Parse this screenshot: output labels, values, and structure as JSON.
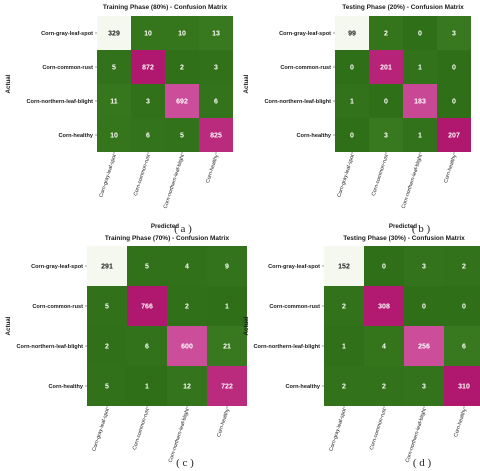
{
  "colors": {
    "dark_green": "#2e6f18",
    "mid_green": "#3a7a20",
    "light_green": "#d9efc6",
    "very_light": "#f4f8ee",
    "magenta": "#b0176e",
    "pink": "#cc4e9a",
    "dark_text": "#1a1a1a",
    "light_text": "#ffffff"
  },
  "chart_data": [
    {
      "type": "heatmap",
      "caption": "( a )",
      "title": "Training Phase (80%) - Confusion Matrix",
      "xlabel": "Predicted",
      "ylabel": "Actual",
      "rows": [
        "Corn-gray-leaf-spot",
        "Corn-common-rust",
        "Corn-northern-leaf-blight",
        "Corn-healthy"
      ],
      "cols": [
        "Corn-gray-leaf-spot",
        "Corn-common-rust",
        "Corn-northern-leaf-blight",
        "Corn-healthy"
      ],
      "values": [
        [
          329,
          10,
          10,
          13
        ],
        [
          5,
          872,
          2,
          3
        ],
        [
          11,
          3,
          692,
          6
        ],
        [
          10,
          6,
          5,
          825
        ]
      ]
    },
    {
      "type": "heatmap",
      "caption": "( b )",
      "title": "Testing Phase (20%) - Confusion Matrix",
      "xlabel": "Predicted",
      "ylabel": "Actual",
      "rows": [
        "Corn-gray-leaf-spot",
        "Corn-common-rust",
        "Corn-northern-leaf-blight",
        "Corn-healthy"
      ],
      "cols": [
        "Corn-gray-leaf-spot",
        "Corn-common-rust",
        "Corn-northern-leaf-blight",
        "Corn-healthy"
      ],
      "values": [
        [
          99,
          2,
          0,
          3
        ],
        [
          0,
          201,
          1,
          0
        ],
        [
          1,
          0,
          183,
          0
        ],
        [
          0,
          3,
          1,
          207
        ]
      ]
    },
    {
      "type": "heatmap",
      "caption": "( c )",
      "title": "Training Phase (70%) - Confusion Matrix",
      "xlabel": "Predicted",
      "ylabel": "Actual",
      "rows": [
        "Corn-gray-leaf-spot",
        "Corn-common-rust",
        "Corn-northern-leaf-blight",
        "Corn-healthy"
      ],
      "cols": [
        "Corn-gray-leaf-spot",
        "Corn-common-rust",
        "Corn-northern-leaf-blight",
        "Corn-healthy"
      ],
      "values": [
        [
          291,
          5,
          4,
          9
        ],
        [
          5,
          766,
          2,
          1
        ],
        [
          2,
          6,
          600,
          21
        ],
        [
          5,
          1,
          12,
          722
        ]
      ]
    },
    {
      "type": "heatmap",
      "caption": "( d )",
      "title": "Testing Phase (30%) - Confusion Matrix",
      "xlabel": "Predicted",
      "ylabel": "Actual",
      "rows": [
        "Corn-gray-leaf-spot",
        "Corn-common-rust",
        "Corn-northern-leaf-blight",
        "Corn-healthy"
      ],
      "cols": [
        "Corn-gray-leaf-spot",
        "Corn-common-rust",
        "Corn-northern-leaf-blight",
        "Corn-healthy"
      ],
      "values": [
        [
          152,
          0,
          3,
          2
        ],
        [
          2,
          308,
          0,
          0
        ],
        [
          1,
          4,
          256,
          6
        ],
        [
          2,
          2,
          3,
          310
        ]
      ]
    }
  ]
}
